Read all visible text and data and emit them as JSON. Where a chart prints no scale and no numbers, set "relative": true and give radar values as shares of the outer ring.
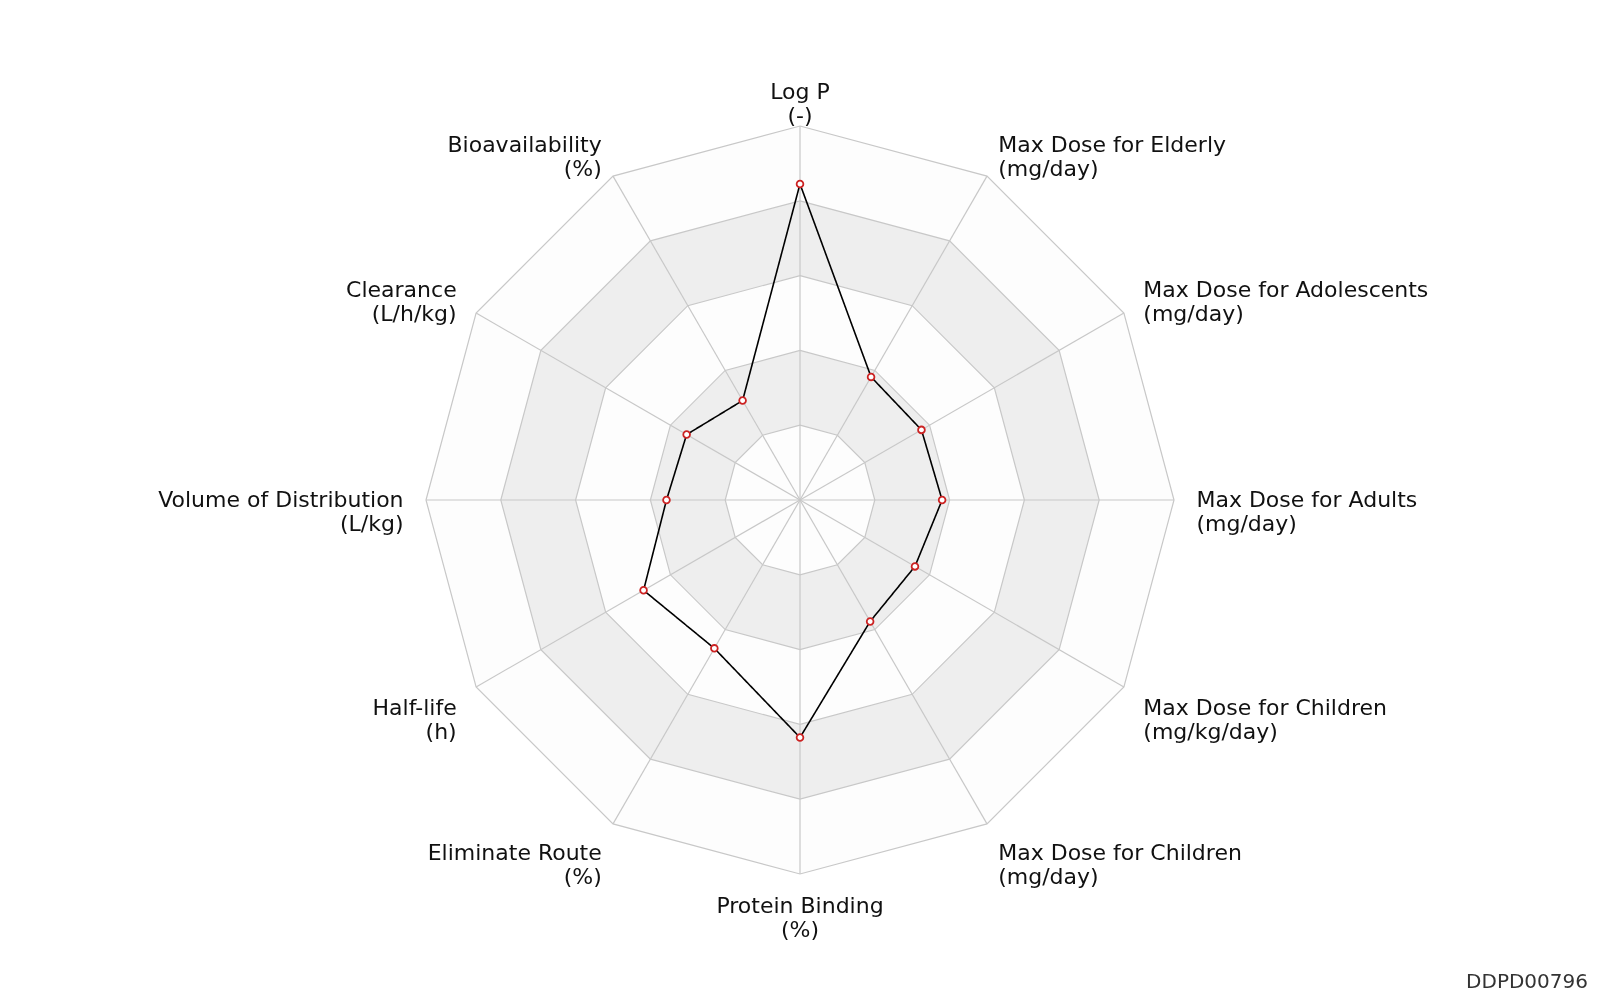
{
  "chart_data": {
    "type": "radar",
    "relative": true,
    "grid": true,
    "marker": "circle",
    "categories": [
      "Log P\n(-)",
      "Max Dose for Elderly\n(mg/day)",
      "Max Dose for Adolescents\n(mg/day)",
      "Max Dose for Adults\n(mg/day)",
      "Max Dose for Children\n(mg/kg/day)",
      "Max Dose for Children\n(mg/day)",
      "Protein Binding\n(%)",
      "Eliminate Route\n(%)",
      "Half-life\n(h)",
      "Volume of Distribution\n(L/kg)",
      "Clearance\n(L/h/kg)",
      "Bioavailability\n(%)"
    ],
    "series": [
      {
        "color": "#000000",
        "values": [
          0.845,
          0.38,
          0.375,
          0.38,
          0.355,
          0.375,
          0.635,
          0.458,
          0.483,
          0.357,
          0.35,
          0.307
        ]
      }
    ],
    "annotations": [
      "DDPD00796"
    ]
  }
}
